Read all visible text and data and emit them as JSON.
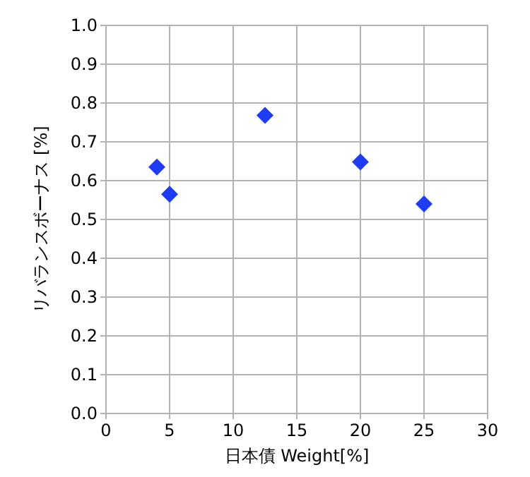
{
  "chart_data": {
    "type": "scatter",
    "xlabel": "日本債 Weight[%]",
    "ylabel": "リバランスボーナス [%]",
    "x": [
      4,
      5,
      12.5,
      20,
      25
    ],
    "series": [
      {
        "color": "#1f3cf5",
        "values": [
          0.635,
          0.565,
          0.768,
          0.648,
          0.54
        ]
      }
    ],
    "xlim": [
      0,
      30
    ],
    "xticks": [
      0,
      5,
      10,
      15,
      20,
      25,
      30
    ],
    "ylim": [
      0,
      1
    ],
    "yticks": [
      {
        "value": 0,
        "label": "0.0"
      },
      {
        "value": 0.1,
        "label": "0.1"
      },
      {
        "value": 0.2,
        "label": "0.2"
      },
      {
        "value": 0.3,
        "label": "0.3"
      },
      {
        "value": 0.4,
        "label": "0.4"
      },
      {
        "value": 0.5,
        "label": "0.5"
      },
      {
        "value": 0.6,
        "label": "0.6"
      },
      {
        "value": 0.7,
        "label": "0.7"
      },
      {
        "value": 0.8,
        "label": "0.8"
      },
      {
        "value": 0.9,
        "label": "0.9"
      },
      {
        "value": 1,
        "label": "1.0"
      }
    ],
    "grid": true,
    "marker": "diamond"
  }
}
